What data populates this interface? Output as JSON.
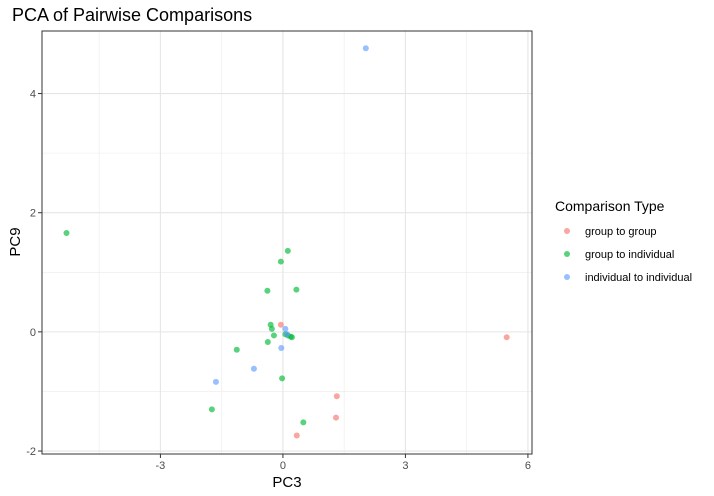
{
  "chart_data": {
    "type": "scatter",
    "title": "PCA of Pairwise Comparisons",
    "xlabel": "PC3",
    "ylabel": "PC9",
    "xlim": [
      -5.9,
      6.1
    ],
    "ylim": [
      -2.05,
      5.05
    ],
    "xticks": [
      -3,
      0,
      3,
      6
    ],
    "yticks": [
      -2,
      0,
      2,
      4
    ],
    "xminor": [
      -4.5,
      -1.5,
      1.5,
      4.5
    ],
    "yminor": [
      -1,
      1,
      3
    ],
    "grid": true,
    "legend": {
      "title": "Comparison Type",
      "position": "right"
    },
    "series": [
      {
        "name": "group to group",
        "color": "#F8766D",
        "points": [
          {
            "x": -0.05,
            "y": 0.12
          },
          {
            "x": 1.32,
            "y": -1.08
          },
          {
            "x": 1.3,
            "y": -1.44
          },
          {
            "x": 0.34,
            "y": -1.74
          },
          {
            "x": 5.48,
            "y": -0.09
          }
        ]
      },
      {
        "name": "group to individual",
        "color": "#00BA38",
        "points": [
          {
            "x": -5.3,
            "y": 1.66
          },
          {
            "x": 0.12,
            "y": 1.36
          },
          {
            "x": -0.05,
            "y": 1.18
          },
          {
            "x": -0.38,
            "y": 0.69
          },
          {
            "x": 0.33,
            "y": 0.71
          },
          {
            "x": -0.3,
            "y": 0.12
          },
          {
            "x": -0.27,
            "y": 0.05
          },
          {
            "x": -0.22,
            "y": -0.06
          },
          {
            "x": 0.06,
            "y": -0.04
          },
          {
            "x": 0.12,
            "y": -0.06
          },
          {
            "x": 0.19,
            "y": -0.08
          },
          {
            "x": 0.22,
            "y": -0.09
          },
          {
            "x": -0.37,
            "y": -0.17
          },
          {
            "x": -1.13,
            "y": -0.3
          },
          {
            "x": -0.02,
            "y": -0.78
          },
          {
            "x": -1.74,
            "y": -1.3
          },
          {
            "x": 0.5,
            "y": -1.52
          }
        ]
      },
      {
        "name": "individual to individual",
        "color": "#619CFF",
        "points": [
          {
            "x": 2.03,
            "y": 4.76
          },
          {
            "x": 0.06,
            "y": 0.05
          },
          {
            "x": 0.1,
            "y": -0.04
          },
          {
            "x": -0.04,
            "y": -0.27
          },
          {
            "x": -0.71,
            "y": -0.62
          },
          {
            "x": -1.64,
            "y": -0.84
          }
        ]
      }
    ]
  }
}
